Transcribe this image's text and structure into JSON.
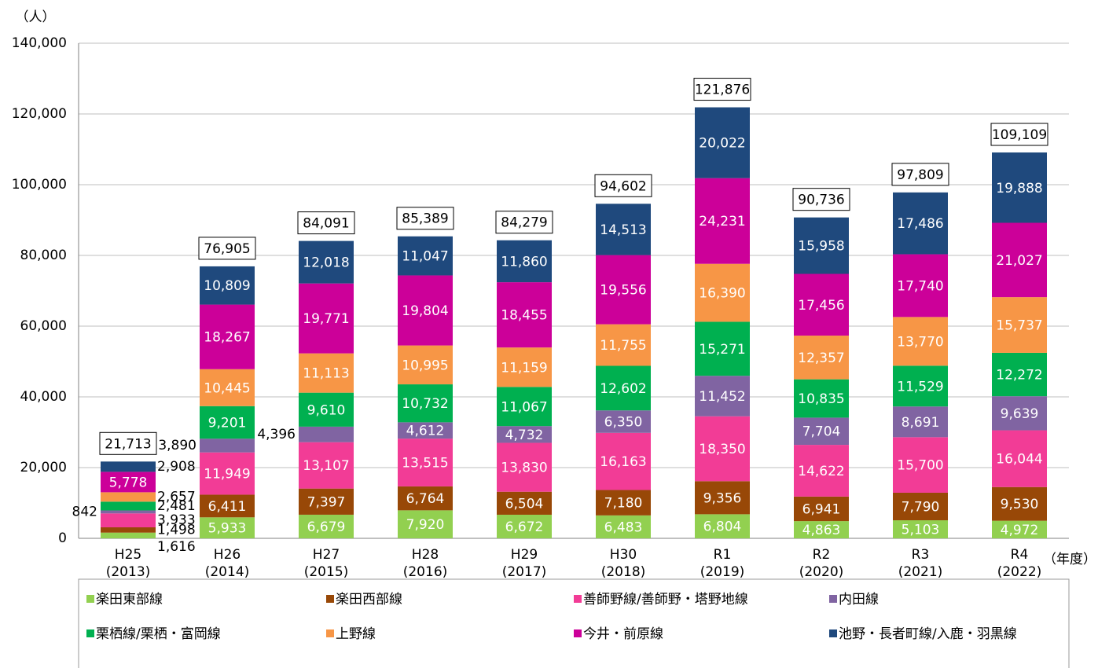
{
  "chart_data": {
    "type": "stacked_bar",
    "y_unit": "（人）",
    "x_unit": "（年度）",
    "categories": [
      "H25\n(2013)",
      "H26\n(2014)",
      "H27\n(2015)",
      "H28\n(2016)",
      "H29\n(2017)",
      "H30\n(2018)",
      "R1\n(2019)",
      "R2\n(2020)",
      "R3\n(2021)",
      "R4\n(2022)"
    ],
    "ylim": [
      0,
      140000
    ],
    "yticks": [
      0,
      {
        "value": 20000,
        "label": "20,000"
      },
      {
        "value": 40000,
        "label": "40,000"
      },
      {
        "value": 60000,
        "label": "60,000"
      },
      {
        "value": 80000,
        "label": "80,000"
      },
      {
        "value": 100000,
        "label": "100,000"
      },
      {
        "value": 120000,
        "label": "120,000"
      },
      {
        "value": 140000,
        "label": "140,000"
      }
    ],
    "grid": true,
    "series": [
      {
        "name": "楽田東部線",
        "color": "#92d050",
        "values": [
          1616,
          5933,
          6679,
          7920,
          6672,
          6483,
          6804,
          4863,
          5103,
          4972
        ],
        "value_labels": [
          "1,616",
          "5,933",
          "6,679",
          "7,920",
          "6,672",
          "6,483",
          "6,804",
          "4,863",
          "5,103",
          "4,972"
        ]
      },
      {
        "name": "楽田西部線",
        "color": "#984807",
        "values": [
          1498,
          6411,
          7397,
          6764,
          6504,
          7180,
          9356,
          6941,
          7790,
          9530
        ],
        "value_labels": [
          "1,498",
          "6,411",
          "7,397",
          "6,764",
          "6,504",
          "7,180",
          "9,356",
          "6,941",
          "7,790",
          "9,530"
        ]
      },
      {
        "name": "善師野線/善師野・塔野地線",
        "color": "#f23c96",
        "values": [
          3933,
          11949,
          13107,
          13515,
          13830,
          16163,
          18350,
          14622,
          15700,
          16044
        ],
        "value_labels": [
          "3,933",
          "11,949",
          "13,107",
          "13,515",
          "13,830",
          "16,163",
          "18,350",
          "14,622",
          "15,700",
          "16,044"
        ]
      },
      {
        "name": "内田線",
        "color": "#8064a2",
        "values": [
          842,
          3890,
          4396,
          4612,
          4732,
          6350,
          11452,
          7704,
          8691,
          9639
        ],
        "value_labels": [
          "842",
          "3,890",
          "4,396",
          "4,612",
          "4,732",
          "6,350",
          "11,452",
          "7,704",
          "8,691",
          "9,639"
        ]
      },
      {
        "name": "栗栖線/栗栖・富岡線",
        "color": "#00b050",
        "values": [
          2481,
          9201,
          9610,
          10732,
          11067,
          12602,
          15271,
          10835,
          11529,
          12272
        ],
        "value_labels": [
          "2,481",
          "9,201",
          "9,610",
          "10,732",
          "11,067",
          "12,602",
          "15,271",
          "10,835",
          "11,529",
          "12,272"
        ]
      },
      {
        "name": "上野線",
        "color": "#f79646",
        "values": [
          2657,
          10445,
          11113,
          10995,
          11159,
          11755,
          16390,
          12357,
          13770,
          15737
        ],
        "value_labels": [
          "2,657",
          "10,445",
          "11,113",
          "10,995",
          "11,159",
          "11,755",
          "16,390",
          "12,357",
          "13,770",
          "15,737"
        ]
      },
      {
        "name": "今井・前原線",
        "color": "#cc0099",
        "values": [
          5778,
          18267,
          19771,
          19804,
          18455,
          19556,
          24231,
          17456,
          17740,
          21027
        ],
        "value_labels": [
          "5,778",
          "18,267",
          "19,771",
          "19,804",
          "18,455",
          "19,556",
          "24,231",
          "17,456",
          "17,740",
          "21,027"
        ]
      },
      {
        "name": "池野・長者町線/入鹿・羽黒線",
        "color": "#1f497d",
        "values": [
          2908,
          10809,
          12018,
          11047,
          11860,
          14513,
          20022,
          15958,
          17486,
          19888
        ],
        "value_labels": [
          "2,908",
          "10,809",
          "12,018",
          "11,047",
          "11,860",
          "14,513",
          "20,022",
          "15,958",
          "17,486",
          "19,888"
        ]
      }
    ],
    "totals": [
      21713,
      76905,
      84091,
      85389,
      84279,
      94602,
      121876,
      90736,
      97809,
      109109
    ],
    "total_labels": [
      "21,713",
      "76,905",
      "84,091",
      "85,389",
      "84,279",
      "94,602",
      "121,876",
      "90,736",
      "97,809",
      "109,109"
    ]
  }
}
